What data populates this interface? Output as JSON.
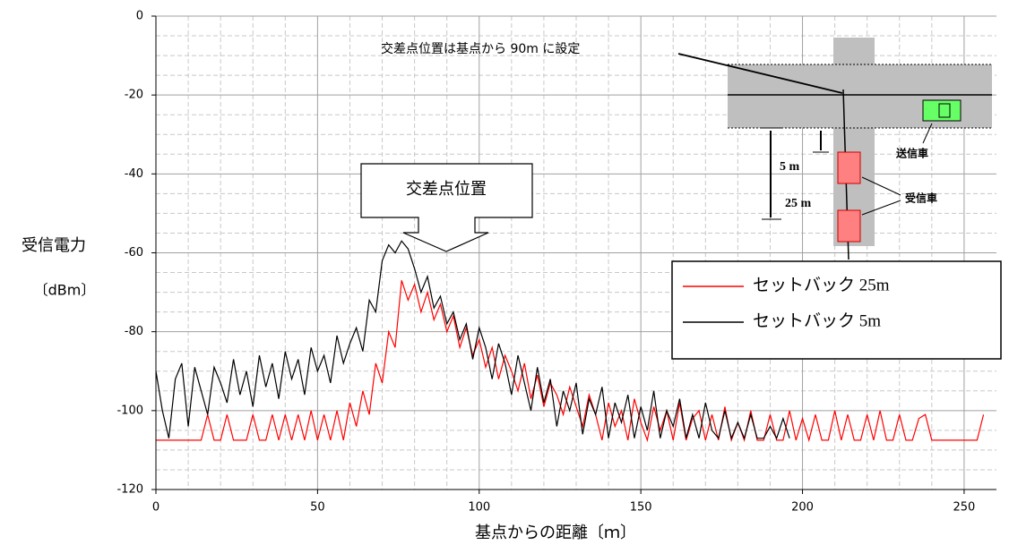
{
  "chart_data": {
    "type": "line",
    "xlabel": "基点からの距離〔ｍ〕",
    "ylabel": [
      "受信電力",
      "〔dBm〕"
    ],
    "xlim": [
      0,
      260
    ],
    "ylim": [
      -120,
      0
    ],
    "xticks": [
      0,
      50,
      100,
      150,
      200,
      250
    ],
    "yticks": [
      -120,
      -100,
      -80,
      -60,
      -40,
      -20,
      0
    ],
    "xminorticks": [
      10,
      20,
      30,
      40,
      60,
      70,
      80,
      90,
      110,
      120,
      130,
      140,
      160,
      170,
      180,
      190,
      210,
      220,
      230,
      240
    ],
    "yminorticks": [
      -115,
      -110,
      -105,
      -95,
      -90,
      -85,
      -75,
      -70,
      -65,
      -55,
      -50,
      -45,
      -35,
      -30,
      -25,
      -15,
      -10,
      -5
    ],
    "grid": true,
    "legend": "right",
    "series": [
      {
        "name": "セットバック 25m",
        "color": "#ff0000",
        "x": [
          0,
          2,
          4,
          6,
          8,
          10,
          12,
          14,
          16,
          18,
          20,
          22,
          24,
          26,
          28,
          30,
          32,
          34,
          36,
          38,
          40,
          42,
          44,
          46,
          48,
          50,
          52,
          54,
          56,
          58,
          60,
          62,
          64,
          66,
          68,
          70,
          72,
          74,
          76,
          78,
          80,
          82,
          84,
          86,
          88,
          90,
          92,
          94,
          96,
          98,
          100,
          102,
          104,
          106,
          108,
          110,
          112,
          114,
          116,
          118,
          120,
          122,
          124,
          126,
          128,
          130,
          132,
          134,
          136,
          138,
          140,
          142,
          144,
          146,
          148,
          150,
          152,
          154,
          156,
          158,
          160,
          162,
          164,
          166,
          168,
          170,
          172,
          174,
          176,
          178,
          180,
          182,
          184,
          186,
          188,
          190,
          192,
          194,
          196,
          198,
          200,
          202,
          204,
          206,
          208,
          210,
          212,
          214,
          216,
          218,
          220,
          222,
          224,
          226,
          228,
          230,
          232,
          234,
          236,
          238,
          240,
          242,
          244,
          246,
          248,
          250,
          252,
          254,
          256
        ],
        "values": [
          -107.5,
          -107.5,
          -107.5,
          -107.5,
          -107.5,
          -107.5,
          -107.5,
          -107.5,
          -101,
          -107.5,
          -107.5,
          -101,
          -107.5,
          -107.5,
          -107.5,
          -101,
          -107.5,
          -107.5,
          -101,
          -107.5,
          -101,
          -107.5,
          -101,
          -107.5,
          -100,
          -107.5,
          -101,
          -107.5,
          -100,
          -107.5,
          -98,
          -104,
          -95,
          -101,
          -88,
          -93,
          -80,
          -84,
          -67,
          -72,
          -68,
          -75,
          -70,
          -77,
          -73,
          -80,
          -76,
          -84,
          -79,
          -86,
          -82,
          -89,
          -84,
          -92,
          -86,
          -90,
          -95,
          -88,
          -97,
          -91,
          -99,
          -93,
          -96,
          -101,
          -94,
          -99,
          -104,
          -96,
          -101,
          -107.5,
          -98,
          -104,
          -100,
          -107.5,
          -97,
          -103,
          -107.5,
          -99,
          -105,
          -100,
          -107.5,
          -98,
          -107.5,
          -102,
          -100,
          -107.5,
          -101,
          -107.5,
          -99,
          -107.5,
          -103,
          -107.5,
          -100,
          -107.5,
          -107.5,
          -101,
          -107.5,
          -107.5,
          -100,
          -107.5,
          -102,
          -107.5,
          -101,
          -107.5,
          -107.5,
          -100,
          -107.5,
          -101,
          -107.5,
          -107.5,
          -101,
          -107.5,
          -100,
          -107.5,
          -107.5,
          -101,
          -107.5,
          -107.5,
          -102,
          -101,
          -107.5,
          -107.5,
          -107.5,
          -107.5,
          -107.5,
          -107.5,
          -107.5,
          -107.5,
          -101
        ]
      },
      {
        "name": "セットバック 5m",
        "color": "#000000",
        "x": [
          0,
          2,
          4,
          6,
          8,
          10,
          12,
          14,
          16,
          18,
          20,
          22,
          24,
          26,
          28,
          30,
          32,
          34,
          36,
          38,
          40,
          42,
          44,
          46,
          48,
          50,
          52,
          54,
          56,
          58,
          60,
          62,
          64,
          66,
          68,
          70,
          72,
          74,
          76,
          78,
          80,
          82,
          84,
          86,
          88,
          90,
          92,
          94,
          96,
          98,
          100,
          102,
          104,
          106,
          108,
          110,
          112,
          114,
          116,
          118,
          120,
          122,
          124,
          126,
          128,
          130,
          132,
          134,
          136,
          138,
          140,
          142,
          144,
          146,
          148,
          150,
          152,
          154,
          156,
          158,
          160,
          162,
          164,
          166,
          168,
          170,
          172,
          174,
          176,
          178,
          180,
          182,
          184,
          186,
          188,
          190,
          192,
          194,
          196
        ],
        "values": [
          -90,
          -100,
          -107,
          -92,
          -88,
          -104,
          -89,
          -95,
          -101,
          -89,
          -93,
          -98,
          -87,
          -96,
          -90,
          -99,
          -86,
          -94,
          -88,
          -97,
          -85,
          -92,
          -87,
          -96,
          -84,
          -90,
          -86,
          -93,
          -81,
          -88,
          -83,
          -79,
          -85,
          -72,
          -75,
          -62,
          -58,
          -60,
          -57,
          -59,
          -64,
          -70,
          -66,
          -74,
          -71,
          -78,
          -75,
          -82,
          -78,
          -87,
          -79,
          -84,
          -92,
          -83,
          -88,
          -96,
          -86,
          -93,
          -100,
          -89,
          -98,
          -92,
          -104,
          -95,
          -100,
          -93,
          -106,
          -97,
          -101,
          -94,
          -107,
          -98,
          -103,
          -96,
          -107,
          -99,
          -105,
          -95,
          -107,
          -100,
          -104,
          -97,
          -107,
          -101,
          -107,
          -98,
          -105,
          -107,
          -100,
          -107,
          -103,
          -107,
          -101,
          -107,
          -107,
          -104,
          -107,
          -102,
          -107
        ]
      }
    ],
    "annotations": {
      "callout": "交差点位置",
      "note": "交差点位置は基点から 90m に設定",
      "transmitter": "送信車",
      "receiver": "受信車",
      "dist_5": "5 m",
      "dist_25": "25 m"
    }
  }
}
